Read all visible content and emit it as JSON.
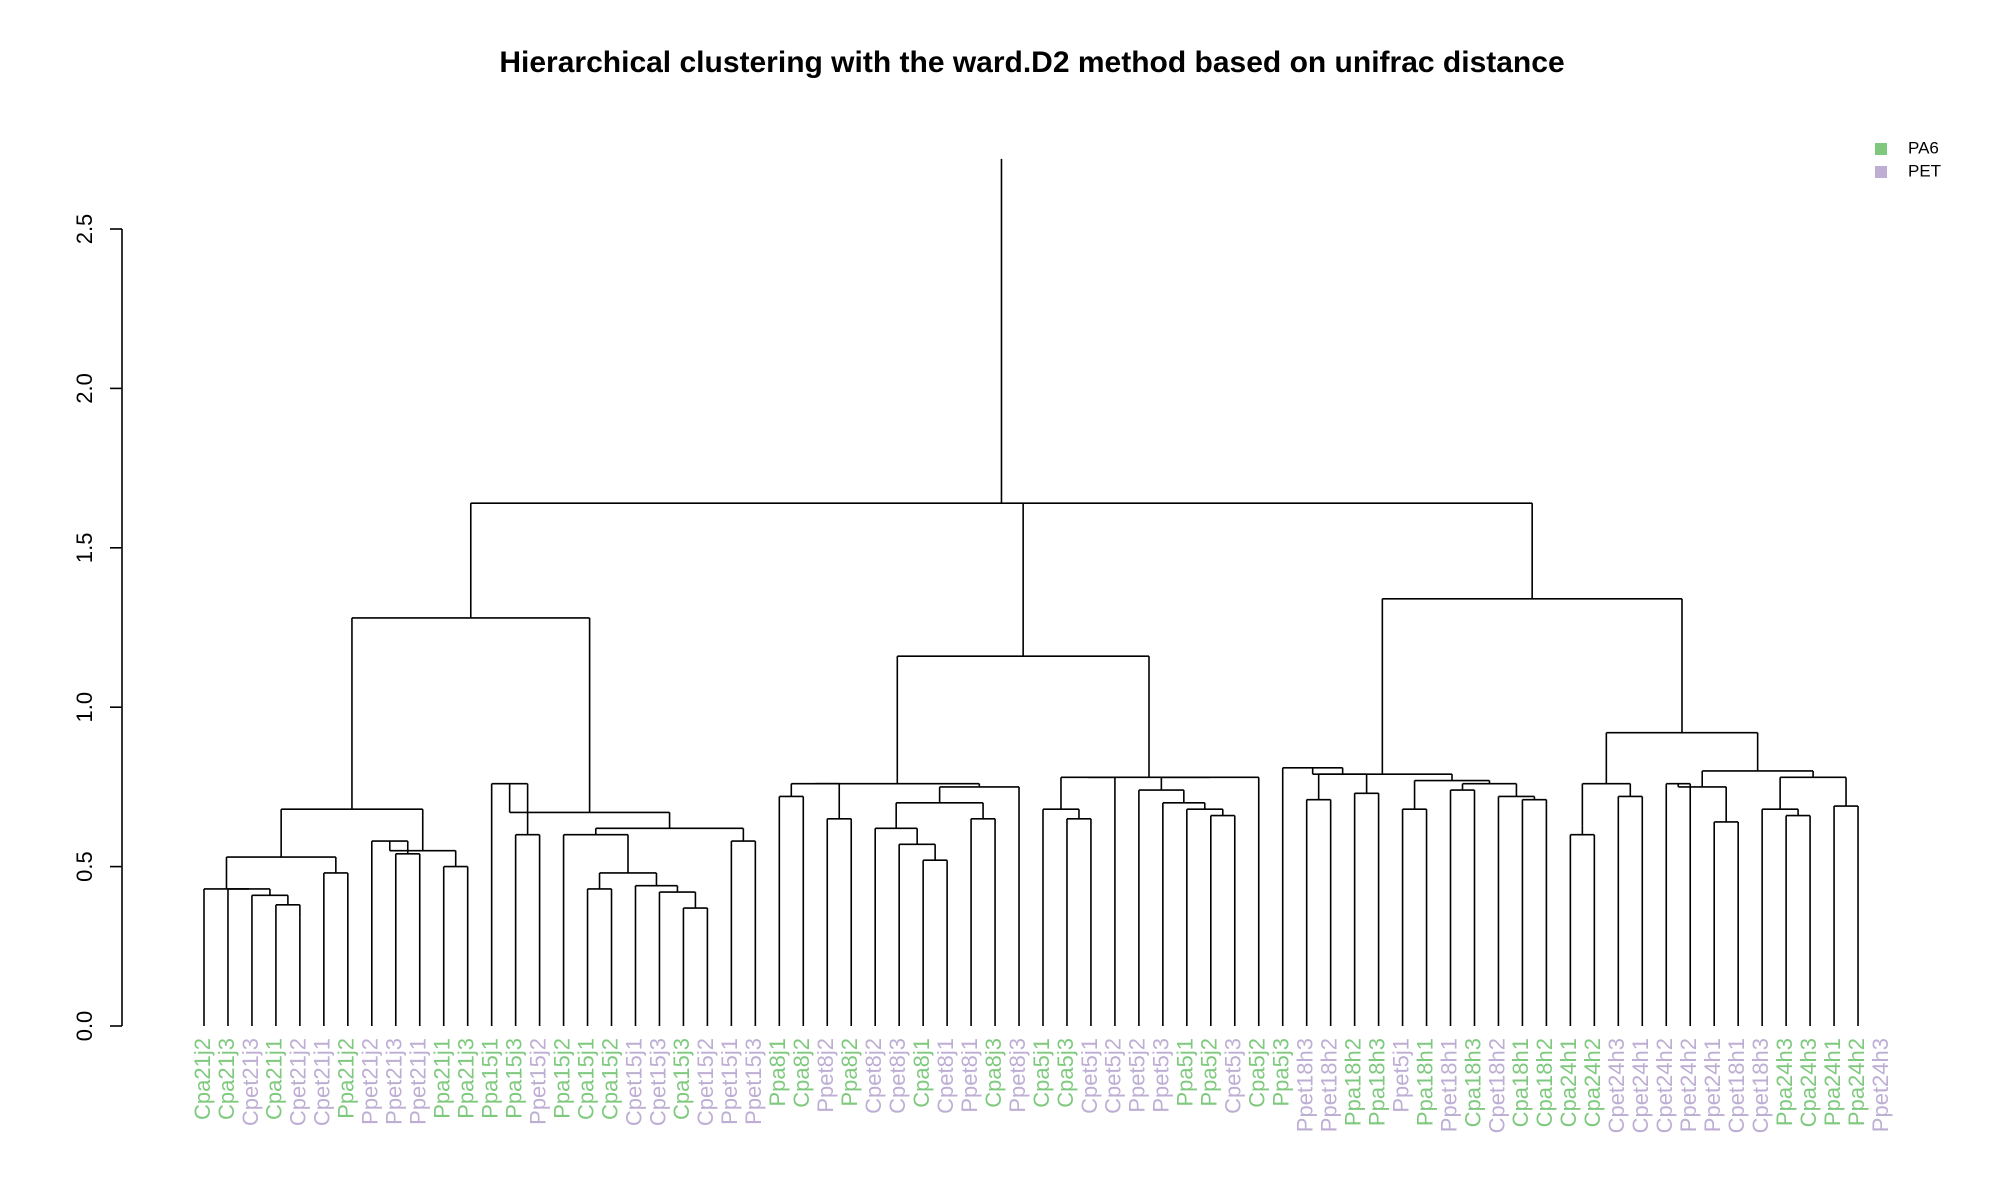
{
  "chart_data": {
    "type": "dendrogram",
    "title": "Hierarchical clustering with the ward.D2 method based on unifrac distance",
    "ylim": [
      0,
      2.72
    ],
    "yticks": [
      0.0,
      0.5,
      1.0,
      1.5,
      2.0,
      2.5
    ],
    "ytick_labels": [
      "0.0",
      "0.5",
      "1.0",
      "1.5",
      "2.0",
      "2.5"
    ],
    "legend": {
      "position": "top-right",
      "entries": [
        {
          "label": "PA6",
          "color": "#7FC97F"
        },
        {
          "label": "PET",
          "color": "#BEAED4"
        }
      ]
    },
    "leaves": [
      {
        "label": "Cpa21j2",
        "group": "PA6"
      },
      {
        "label": "Cpa21j3",
        "group": "PA6"
      },
      {
        "label": "Cpet21j3",
        "group": "PET"
      },
      {
        "label": "Cpa21j1",
        "group": "PA6"
      },
      {
        "label": "Cpet21j2",
        "group": "PET"
      },
      {
        "label": "Cpet21j1",
        "group": "PET"
      },
      {
        "label": "Ppa21j2",
        "group": "PA6"
      },
      {
        "label": "Ppet21j2",
        "group": "PET"
      },
      {
        "label": "Ppet21j3",
        "group": "PET"
      },
      {
        "label": "Ppet21j1",
        "group": "PET"
      },
      {
        "label": "Ppa21j1",
        "group": "PA6"
      },
      {
        "label": "Ppa21j3",
        "group": "PA6"
      },
      {
        "label": "Ppa15j1",
        "group": "PA6"
      },
      {
        "label": "Ppa15j3",
        "group": "PA6"
      },
      {
        "label": "Ppet15j2",
        "group": "PET"
      },
      {
        "label": "Ppa15j2",
        "group": "PA6"
      },
      {
        "label": "Cpa15j1",
        "group": "PA6"
      },
      {
        "label": "Cpa15j2",
        "group": "PA6"
      },
      {
        "label": "Cpet15j1",
        "group": "PET"
      },
      {
        "label": "Cpet15j3",
        "group": "PET"
      },
      {
        "label": "Cpa15j3",
        "group": "PA6"
      },
      {
        "label": "Cpet15j2",
        "group": "PET"
      },
      {
        "label": "Ppet15j1",
        "group": "PET"
      },
      {
        "label": "Ppet15j3",
        "group": "PET"
      },
      {
        "label": "Ppa8j1",
        "group": "PA6"
      },
      {
        "label": "Cpa8j2",
        "group": "PA6"
      },
      {
        "label": "Ppet8j2",
        "group": "PET"
      },
      {
        "label": "Ppa8j2",
        "group": "PA6"
      },
      {
        "label": "Cpet8j2",
        "group": "PET"
      },
      {
        "label": "Cpet8j3",
        "group": "PET"
      },
      {
        "label": "Cpa8j1",
        "group": "PA6"
      },
      {
        "label": "Cpet8j1",
        "group": "PET"
      },
      {
        "label": "Ppet8j1",
        "group": "PET"
      },
      {
        "label": "Cpa8j3",
        "group": "PA6"
      },
      {
        "label": "Ppet8j3",
        "group": "PET"
      },
      {
        "label": "Cpa5j1",
        "group": "PA6"
      },
      {
        "label": "Cpa5j3",
        "group": "PA6"
      },
      {
        "label": "Cpet5j1",
        "group": "PET"
      },
      {
        "label": "Cpet5j2",
        "group": "PET"
      },
      {
        "label": "Ppet5j2",
        "group": "PET"
      },
      {
        "label": "Ppet5j3",
        "group": "PET"
      },
      {
        "label": "Ppa5j1",
        "group": "PA6"
      },
      {
        "label": "Ppa5j2",
        "group": "PA6"
      },
      {
        "label": "Cpet5j3",
        "group": "PET"
      },
      {
        "label": "Cpa5j2",
        "group": "PA6"
      },
      {
        "label": "Ppa5j3",
        "group": "PA6"
      },
      {
        "label": "Ppet18h3",
        "group": "PET"
      },
      {
        "label": "Ppet18h2",
        "group": "PET"
      },
      {
        "label": "Ppa18h2",
        "group": "PA6"
      },
      {
        "label": "Ppa18h3",
        "group": "PA6"
      },
      {
        "label": "Ppet5j1",
        "group": "PET"
      },
      {
        "label": "Ppa18h1",
        "group": "PA6"
      },
      {
        "label": "Ppet18h1",
        "group": "PET"
      },
      {
        "label": "Cpa18h3",
        "group": "PA6"
      },
      {
        "label": "Cpet18h2",
        "group": "PET"
      },
      {
        "label": "Cpa18h1",
        "group": "PA6"
      },
      {
        "label": "Cpa18h2",
        "group": "PA6"
      },
      {
        "label": "Cpa24h1",
        "group": "PA6"
      },
      {
        "label": "Cpa24h2",
        "group": "PA6"
      },
      {
        "label": "Cpet24h3",
        "group": "PET"
      },
      {
        "label": "Cpet24h1",
        "group": "PET"
      },
      {
        "label": "Cpet24h2",
        "group": "PET"
      },
      {
        "label": "Ppet24h2",
        "group": "PET"
      },
      {
        "label": "Ppet24h1",
        "group": "PET"
      },
      {
        "label": "Cpet18h1",
        "group": "PET"
      },
      {
        "label": "Cpet18h3",
        "group": "PET"
      },
      {
        "label": "Ppa24h3",
        "group": "PA6"
      },
      {
        "label": "Cpa24h3",
        "group": "PA6"
      },
      {
        "label": "Ppa24h1",
        "group": "PA6"
      },
      {
        "label": "Ppa24h2",
        "group": "PA6"
      },
      {
        "label": "Ppet24h3",
        "group": "PET"
      }
    ],
    "tree": [
      [
        [
          [
            [
              [
                0,
                [
                  1,
                  [
                    2,
                    [
                      3,
                      [
                        4,
                        0.34
                      ],
                      0.38
                    ],
                    0.41
                  ],
                  0.43
                ],
                0.43
              ],
              [
                5,
                6,
                0.48
              ],
              0.53
            ],
            [
              [
                7,
                [
                  8,
                  9,
                  0.54
                ],
                0.58
              ],
              [
                10,
                11,
                0.5
              ],
              0.55
            ],
            0.68
          ],
          [
            [
              12,
              [
                13,
                14,
                0.6
              ],
              0.76
            ],
            [
              [
                15,
                [
                  [
                    16,
                    17,
                    0.43
                  ],
                  [
                    18,
                    [
                      19,
                      [
                        20,
                        21,
                        0.37
                      ],
                      0.42
                    ],
                    0.44
                  ],
                  0.48
                ],
                0.6
              ],
              [
                22,
                23,
                0.58
              ],
              0.62
            ],
            0.67
          ],
          1.28
        ],
        [
          [
            [
              [
                24,
                25,
                0.72
              ],
              [
                26,
                27,
                0.65
              ],
              0.76
            ],
            [
              [
                [
                  28,
                  [
                    29,
                    [
                      30,
                      31,
                      0.52
                    ],
                    0.57
                  ],
                  0.62
                ],
                [
                  32,
                  33,
                  0.65
                ],
                0.7
              ],
              34,
              0.75
            ],
            0.76
          ],
          [
            [
              [
                35,
                [
                  36,
                  37,
                  0.65
                ],
                0.68
              ],
              38,
              0.78
            ],
            [
              [
                39,
                [
                  40,
                  [
                    41,
                    [
                      42,
                      43,
                      0.66
                    ],
                    0.68
                  ],
                  0.7
                ],
                0.74
              ],
              44,
              0.78
            ],
            0.78
          ],
          1.16
        ],
        [
          [
            [
              45,
              [
                [
                  46,
                  47,
                  0.71
                ],
                [
                  48,
                  49,
                  0.73
                ],
                0.79
              ],
              0.81
            ],
            [
              [
                50,
                51,
                0.68
              ],
              [
                [
                  52,
                  53,
                  0.74
                ],
                [
                  54,
                  [
                    55,
                    56,
                    0.71
                  ],
                  0.72
                ],
                0.76
              ],
              0.77
            ],
            0.79
          ],
          [
            [
              [
                [
                  57,
                  58,
                  0.6
                ],
                0.63
              ],
              [
                59,
                60,
                0.72
              ],
              0.76
            ],
            [
              [
                [
                  61,
                  62,
                  0.76
                ],
                [
                  63,
                  64,
                  0.64
                ],
                0.75
              ],
              [
                [
                  65,
                  [
                    66,
                    67,
                    0.66
                  ],
                  0.68
                ],
                [
                  68,
                  69,
                  0.69
                ],
                0.78
              ],
              0.8
            ],
            0.92
          ],
          1.34
        ],
        1.64
      ],
      2.72
    ]
  }
}
